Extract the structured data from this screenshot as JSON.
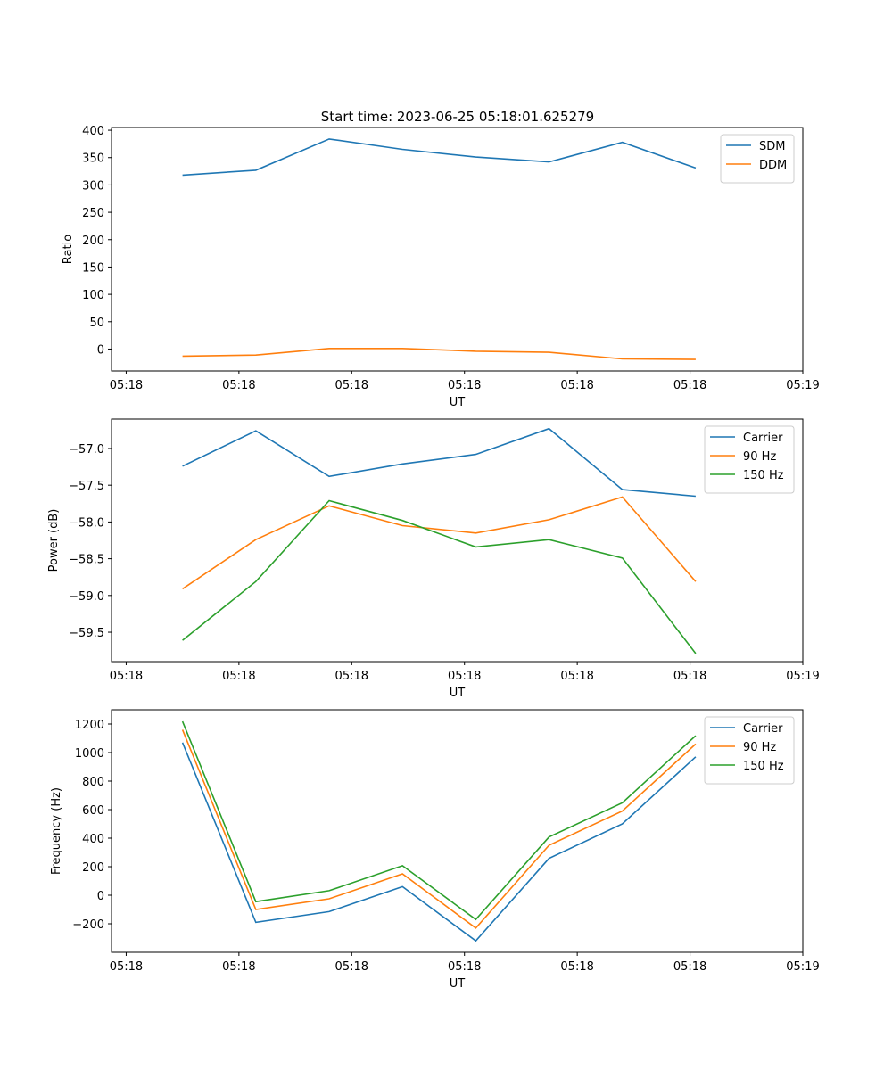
{
  "figure": {
    "title": "Start time: 2023-06-25 05:18:01.625279"
  },
  "chart_data": [
    {
      "type": "line",
      "title": "Start time: 2023-06-25 05:18:01.625279",
      "xlabel": "UT",
      "ylabel": "Ratio",
      "xticks": [
        "05:18",
        "05:18",
        "05:18",
        "05:18",
        "05:18",
        "05:18",
        "05:19"
      ],
      "yticks": [
        0,
        50,
        100,
        150,
        200,
        250,
        300,
        350,
        400
      ],
      "ylim": [
        -40,
        405
      ],
      "x": [
        0.5,
        1.15,
        1.8,
        2.45,
        3.1,
        3.75,
        4.4,
        5.05
      ],
      "series": [
        {
          "name": "SDM",
          "color": "#1f77b4",
          "values": [
            318,
            327,
            384,
            365,
            351,
            342,
            378,
            331
          ]
        },
        {
          "name": "DDM",
          "color": "#ff7f0e",
          "values": [
            -13,
            -11,
            1,
            1,
            -4,
            -6,
            -18,
            -19
          ]
        }
      ],
      "legend": "top-right",
      "grid": false
    },
    {
      "type": "line",
      "title": "",
      "xlabel": "UT",
      "ylabel": "Power (dB)",
      "xticks": [
        "05:18",
        "05:18",
        "05:18",
        "05:18",
        "05:18",
        "05:18",
        "05:19"
      ],
      "yticks": [
        "−57.0",
        "−57.5",
        "−58.0",
        "−58.5",
        "−59.0",
        "−59.5"
      ],
      "ylim": [
        -59.9,
        -56.6
      ],
      "x": [
        0.5,
        1.15,
        1.8,
        2.45,
        3.1,
        3.75,
        4.4,
        5.05
      ],
      "series": [
        {
          "name": "Carrier",
          "color": "#1f77b4",
          "values": [
            -57.24,
            -56.76,
            -57.38,
            -57.21,
            -57.08,
            -56.73,
            -57.56,
            -57.65
          ]
        },
        {
          "name": "90 Hz",
          "color": "#ff7f0e",
          "values": [
            -58.91,
            -58.24,
            -57.78,
            -58.05,
            -58.15,
            -57.97,
            -57.66,
            -58.81
          ]
        },
        {
          "name": "150 Hz",
          "color": "#2ca02c",
          "values": [
            -59.61,
            -58.81,
            -57.71,
            -57.98,
            -58.34,
            -58.24,
            -58.49,
            -59.79
          ]
        }
      ],
      "legend": "top-right",
      "grid": false
    },
    {
      "type": "line",
      "title": "",
      "xlabel": "UT",
      "ylabel": "Frequency (Hz)",
      "xticks": [
        "05:18",
        "05:18",
        "05:18",
        "05:18",
        "05:18",
        "05:18",
        "05:19"
      ],
      "yticks": [
        "−200",
        "0",
        "200",
        "400",
        "600",
        "800",
        "1000",
        "1200"
      ],
      "ylim": [
        -400,
        1300
      ],
      "x": [
        0.5,
        1.15,
        1.8,
        2.45,
        3.1,
        3.75,
        4.4,
        5.05
      ],
      "series": [
        {
          "name": "Carrier",
          "color": "#1f77b4",
          "values": [
            1070,
            -190,
            -115,
            60,
            -320,
            258,
            500,
            970
          ]
        },
        {
          "name": "90 Hz",
          "color": "#ff7f0e",
          "values": [
            1160,
            -100,
            -25,
            150,
            -230,
            350,
            590,
            1060
          ]
        },
        {
          "name": "150 Hz",
          "color": "#2ca02c",
          "values": [
            1218,
            -45,
            32,
            207,
            -170,
            408,
            648,
            1118
          ]
        }
      ],
      "legend": "top-right",
      "grid": false
    }
  ]
}
